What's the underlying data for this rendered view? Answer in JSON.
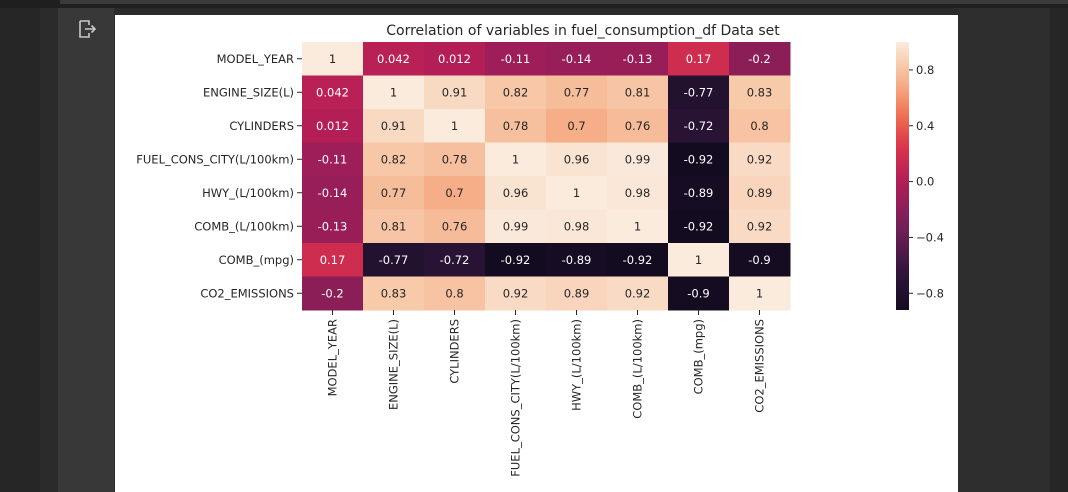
{
  "chart_data": {
    "type": "heatmap",
    "title": "Correlation of variables in fuel_consumption_df Data set",
    "variables": [
      "MODEL_YEAR",
      "ENGINE_SIZE(L)",
      "CYLINDERS",
      "FUEL_CONS_CITY(L/100km)",
      "HWY_(L/100km)",
      "COMB_(L/100km)",
      "COMB_(mpg)",
      "CO2_EMISSIONS"
    ],
    "values": [
      [
        1,
        0.042,
        0.012,
        -0.11,
        -0.14,
        -0.13,
        0.17,
        -0.2
      ],
      [
        0.042,
        1,
        0.91,
        0.82,
        0.77,
        0.81,
        -0.77,
        0.83
      ],
      [
        0.012,
        0.91,
        1,
        0.78,
        0.7,
        0.76,
        -0.72,
        0.8
      ],
      [
        -0.11,
        0.82,
        0.78,
        1,
        0.96,
        0.99,
        -0.92,
        0.92
      ],
      [
        -0.14,
        0.77,
        0.7,
        0.96,
        1,
        0.98,
        -0.89,
        0.89
      ],
      [
        -0.13,
        0.81,
        0.76,
        0.99,
        0.98,
        1,
        -0.92,
        0.92
      ],
      [
        0.17,
        -0.77,
        -0.72,
        -0.92,
        -0.89,
        -0.92,
        1,
        -0.9
      ],
      [
        -0.2,
        0.83,
        0.8,
        0.92,
        0.89,
        0.92,
        -0.9,
        1
      ]
    ],
    "vmin": -0.92,
    "vmax": 1,
    "colorbar": {
      "ticks": [
        0.8,
        0.4,
        0.0,
        -0.4,
        -0.8
      ],
      "tick_labels": [
        "0.8",
        "0.4",
        "0.0",
        "−0.4",
        "−0.8"
      ]
    },
    "colormap": "rocket",
    "annotated": true
  },
  "icons": {
    "output": "output-arrow-icon"
  }
}
